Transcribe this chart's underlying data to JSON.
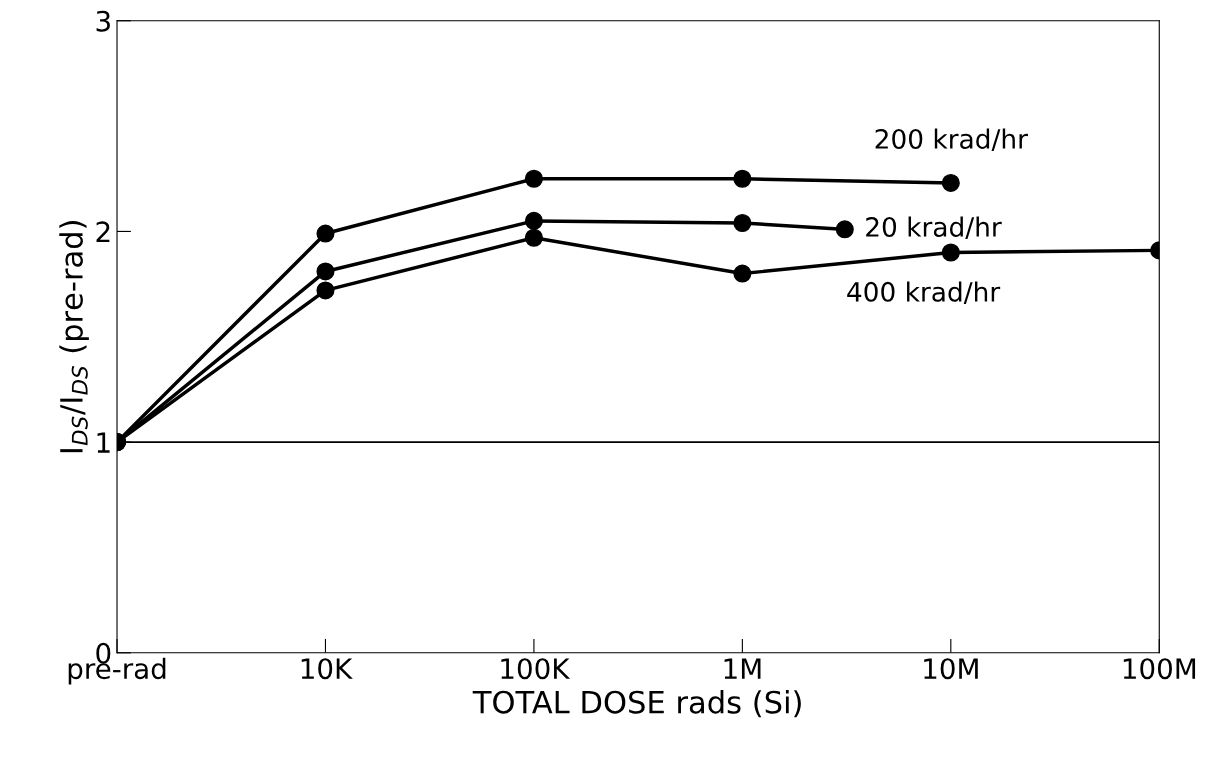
{
  "chart_data": {
    "type": "line",
    "xlabel": "TOTAL DOSE rads (Si)",
    "ylabel": "I$_{DS}$/I$_{DS}$ (pre-rad)",
    "log": "x",
    "xlim": [
      1000,
      100000000
    ],
    "xticks": [
      {
        "value": 1000,
        "label": "pre-rad"
      },
      {
        "value": 10000,
        "label": "10K"
      },
      {
        "value": 100000,
        "label": "100K"
      },
      {
        "value": 1000000,
        "label": "1M"
      },
      {
        "value": 10000000,
        "label": "10M"
      },
      {
        "value": 100000000,
        "label": "100M"
      }
    ],
    "ylim": [
      0,
      3
    ],
    "yticks": [
      0,
      1,
      2,
      3
    ],
    "marker": "circle",
    "line_style": "solid",
    "grid": false,
    "legend": false,
    "ref_lines": [
      {
        "axis": "y",
        "value": 1,
        "color": "#000000"
      }
    ],
    "series": [
      {
        "name": "200 krad/hr",
        "color": "#000000",
        "x": [
          1000,
          10000,
          100000,
          1000000,
          10000000
        ],
        "values": [
          1.0,
          1.99,
          2.25,
          2.25,
          2.23
        ]
      },
      {
        "name": "20 krad/hr",
        "color": "#000000",
        "x": [
          1000,
          10000,
          100000,
          1000000,
          3100000
        ],
        "values": [
          1.0,
          1.81,
          2.05,
          2.04,
          2.01
        ]
      },
      {
        "name": "400 krad/hr",
        "color": "#000000",
        "x": [
          1000,
          10000,
          100000,
          1000000,
          10000000,
          100000000
        ],
        "values": [
          1.0,
          1.72,
          1.97,
          1.8,
          1.9,
          1.91
        ]
      }
    ]
  }
}
